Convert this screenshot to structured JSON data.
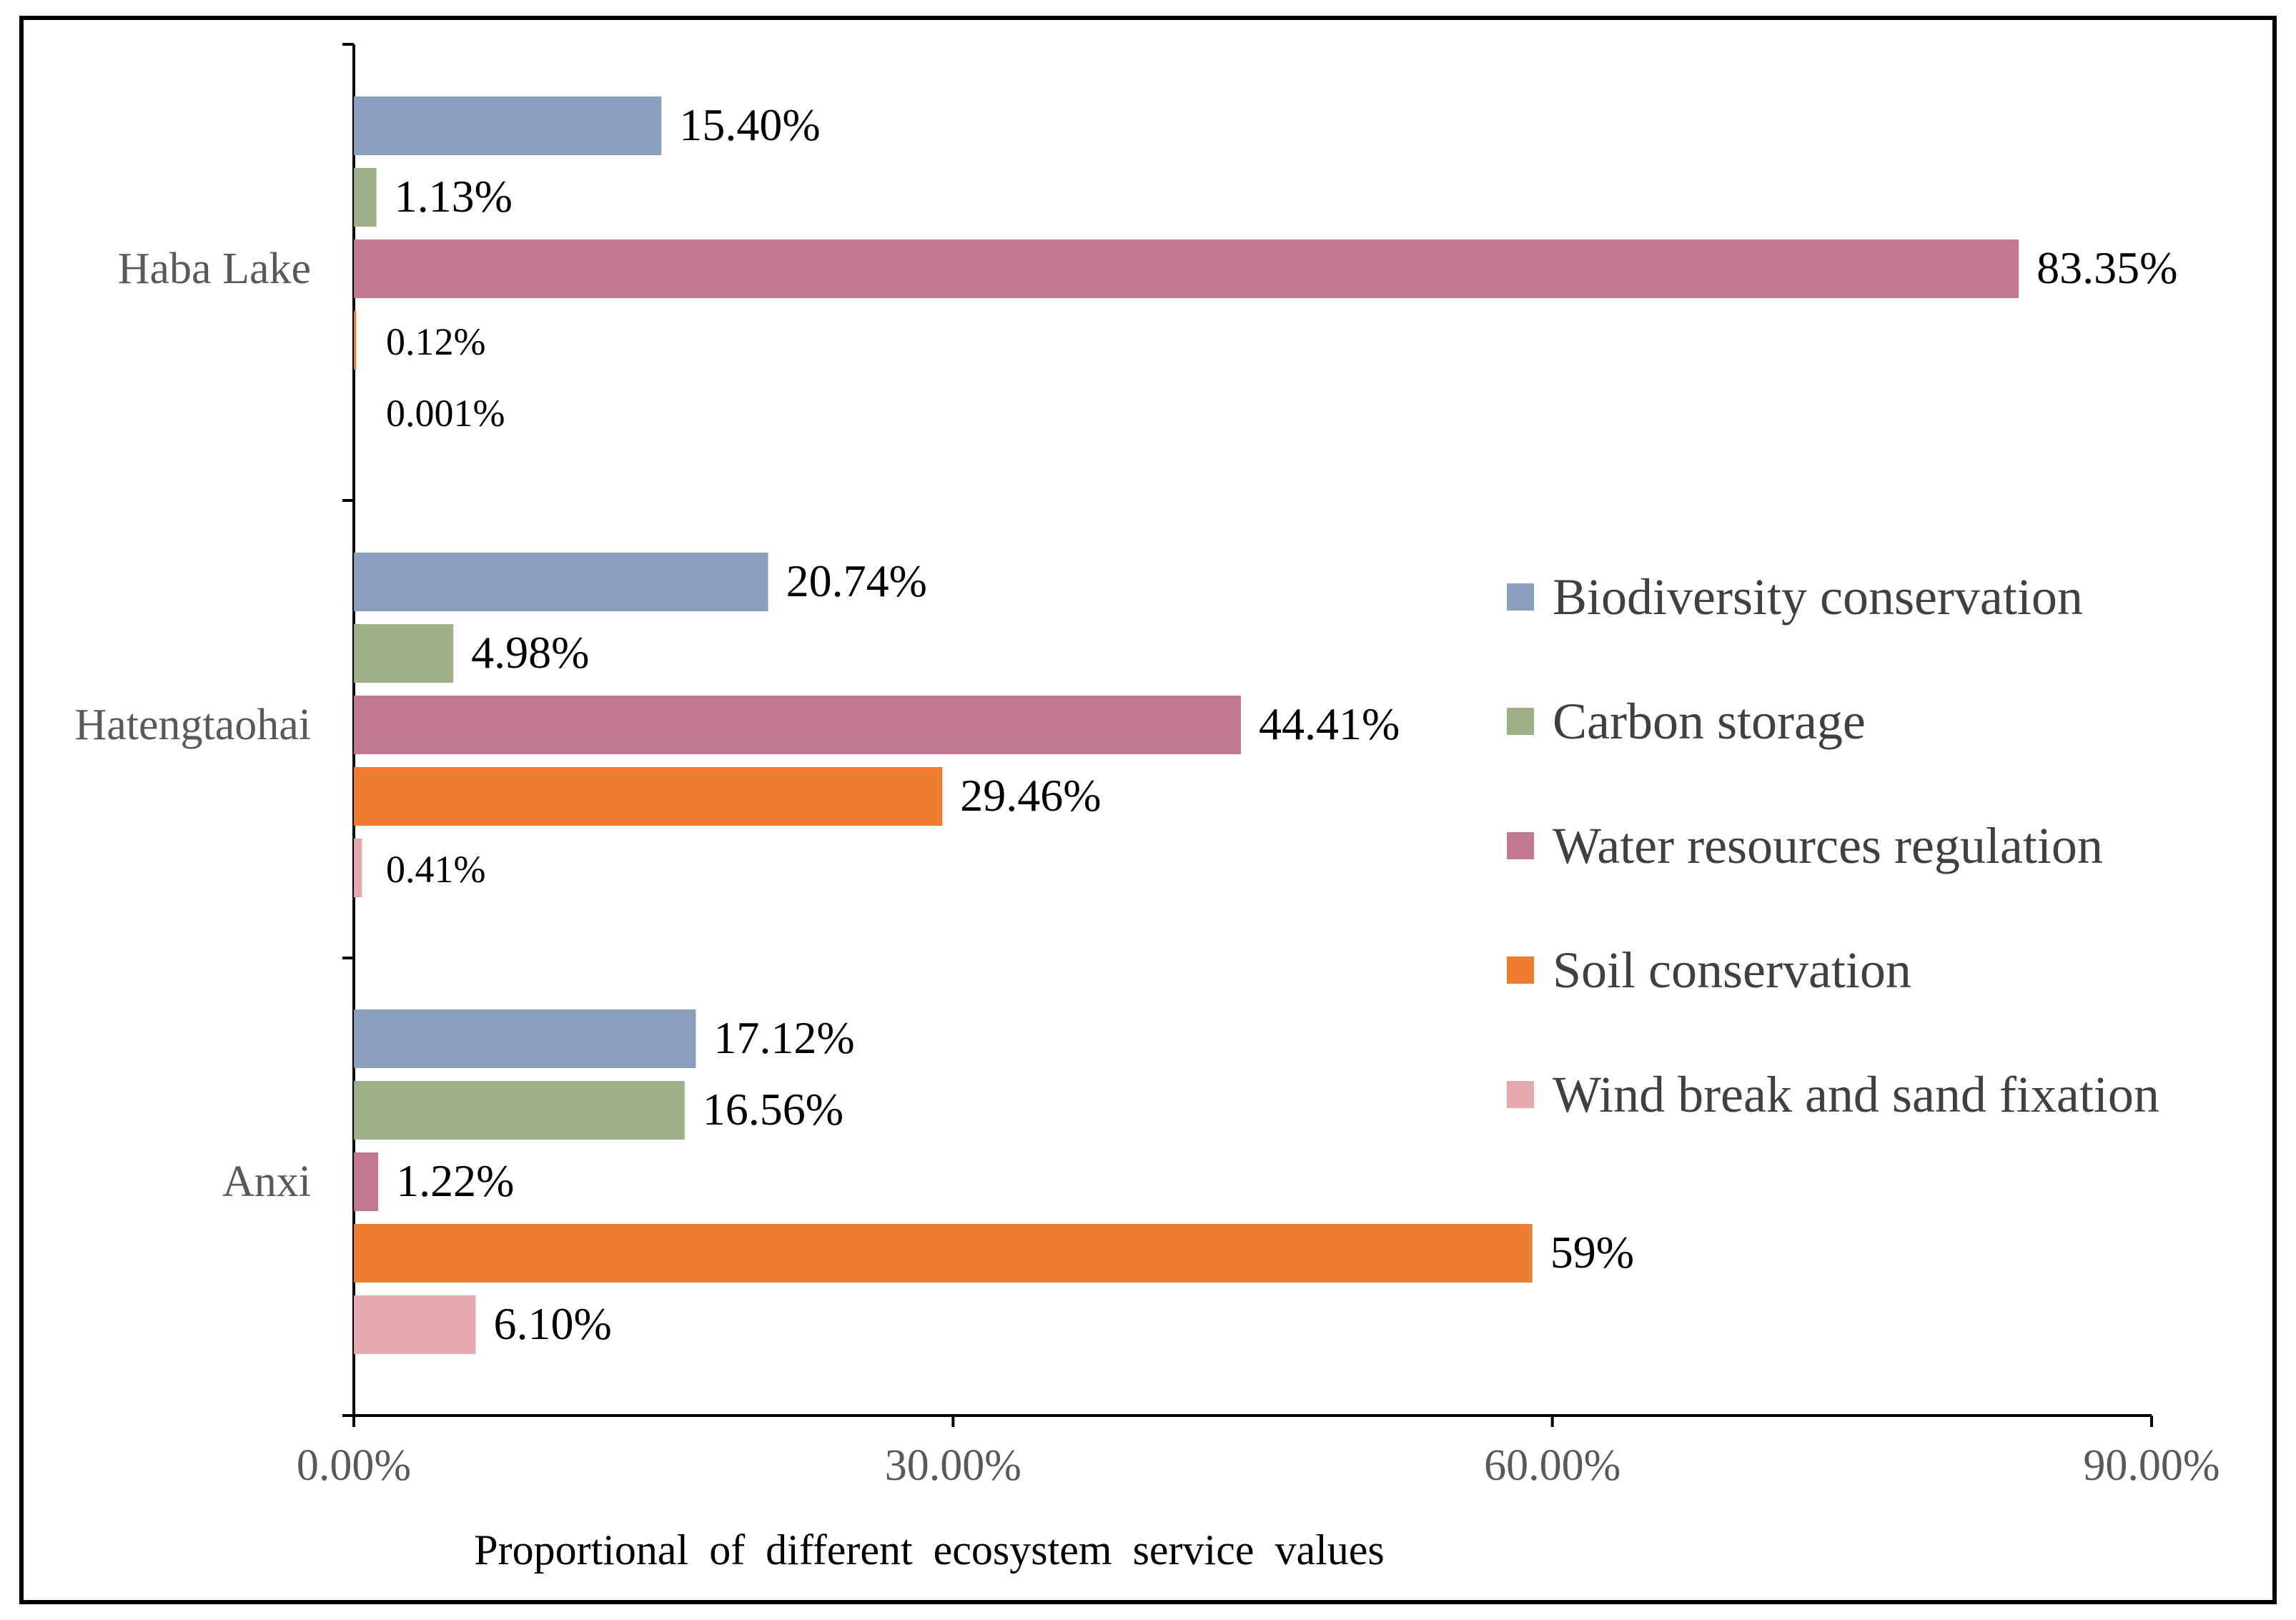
{
  "chart_data": {
    "type": "bar",
    "orientation": "horizontal",
    "categories": [
      "Haba Lake",
      "Hatengtaohai",
      "Anxi"
    ],
    "series": [
      {
        "name": "Biodiversity conservation",
        "color": "#8a9fbd",
        "values": [
          15.4,
          20.74,
          17.12
        ],
        "labels": [
          "15.40%",
          "20.74%",
          "17.12%"
        ]
      },
      {
        "name": "Carbon storage",
        "color": "#9fb088",
        "values": [
          1.13,
          4.98,
          16.56
        ],
        "labels": [
          "1.13%",
          "4.98%",
          "16.56%"
        ]
      },
      {
        "name": "Water resources regulation",
        "color": "#c0788f",
        "values": [
          83.35,
          44.41,
          1.22
        ],
        "labels": [
          "83.35%",
          "44.41%",
          "1.22%"
        ]
      },
      {
        "name": "Soil conservation",
        "color": "#ed7d31",
        "values": [
          0.12,
          29.46,
          59
        ],
        "labels": [
          "0.12%",
          "29.46%",
          "59%"
        ]
      },
      {
        "name": "Wind break and sand fixation",
        "color": "#e4a8ad",
        "values": [
          0.001,
          0.41,
          6.1
        ],
        "labels": [
          "0.001%",
          "0.41%",
          "6.10%"
        ]
      }
    ],
    "xlabel": "Proportional of different ecosystem service values",
    "ylabel": "",
    "xlim": [
      0,
      90
    ],
    "xticks": [
      0,
      30,
      60,
      90
    ],
    "xtick_labels": [
      "0.00%",
      "30.00%",
      "60.00%",
      "90.00%"
    ],
    "legend_position": "right",
    "grid": false
  }
}
